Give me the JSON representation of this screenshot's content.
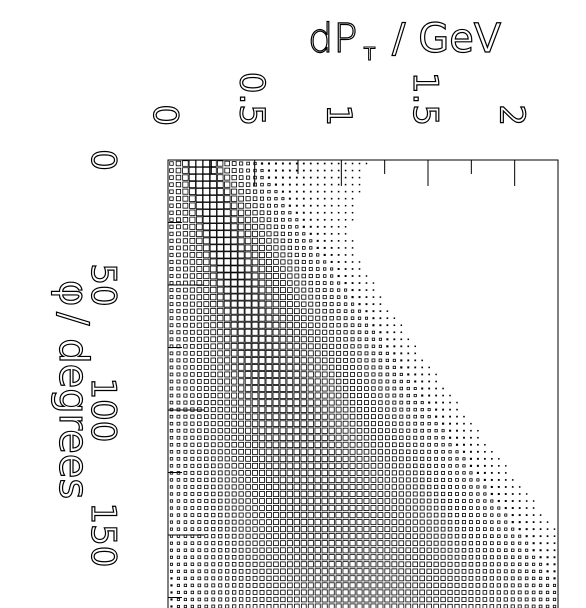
{
  "chart_data": {
    "type": "heatmap",
    "title": "",
    "xlabel": "dP_T / GeV",
    "xlabel_main": "dP",
    "xlabel_sub": "T",
    "xlabel_unit": "/ GeV",
    "ylabel": "φ / degrees",
    "ylabel_symbol": "φ",
    "ylabel_unit": "/ degrees",
    "x_ticks": [
      "0",
      "0.5",
      "1",
      "1.5",
      "2"
    ],
    "y_ticks": [
      "0",
      "50",
      "100",
      "150"
    ],
    "xlim": [
      0,
      2.25
    ],
    "ylim": [
      0,
      180
    ],
    "ridge": {
      "description_points": [
        [
          0.18,
          5
        ],
        [
          0.45,
          60
        ],
        [
          0.7,
          110
        ],
        [
          1.1,
          180
        ]
      ],
      "peak_phi": 0,
      "peak_dpt": 0.15
    },
    "rendering": "box-size proportional to bin content (PAW box plot)",
    "colors": {
      "ink": "#000000",
      "background": "#ffffff"
    }
  }
}
